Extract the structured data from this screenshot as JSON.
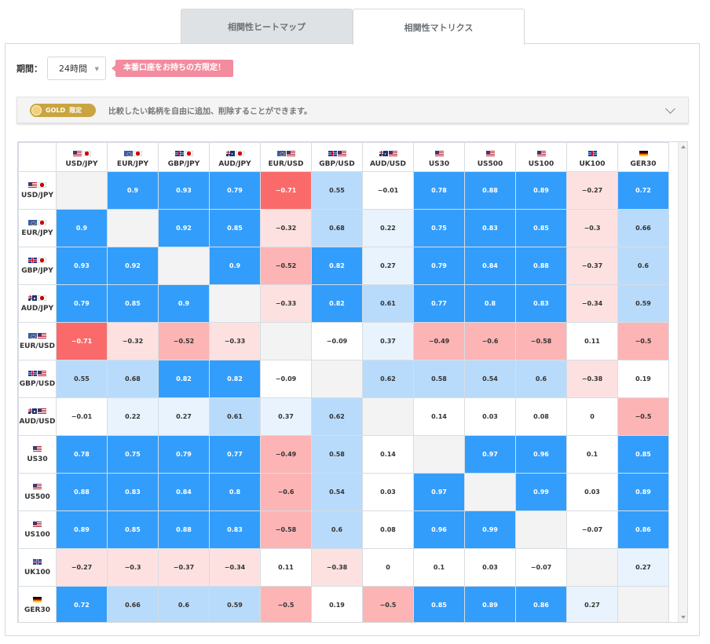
{
  "tabs": [
    {
      "label": "相関性ヒートマップ",
      "active": false
    },
    {
      "label": "相関性マトリクス",
      "active": true
    }
  ],
  "period": {
    "label": "期間：",
    "value": "24時間"
  },
  "promo": "本番口座をお持ちの方限定！",
  "gold_bar": {
    "badge": "GOLD",
    "badge_suffix": "限定",
    "text": "比較したい銘柄を自由に追加、削除することができます。"
  },
  "colors": {
    "strong_pos": "#339dfb",
    "mid_pos": "#b8dbfb",
    "light_pos": "#e8f3fd",
    "strong_neg": "#fb6a6a",
    "mid_neg": "#fdb4b4",
    "light_neg": "#fde1e1",
    "diagonal": "#f3f3f3"
  },
  "matrix": {
    "symbols": [
      {
        "label": "USD/JPY",
        "flags": [
          "us",
          "jp"
        ]
      },
      {
        "label": "EUR/JPY",
        "flags": [
          "eu",
          "jp"
        ]
      },
      {
        "label": "GBP/JPY",
        "flags": [
          "gb",
          "jp"
        ]
      },
      {
        "label": "AUD/JPY",
        "flags": [
          "au",
          "jp"
        ]
      },
      {
        "label": "EUR/USD",
        "flags": [
          "eu",
          "us"
        ]
      },
      {
        "label": "GBP/USD",
        "flags": [
          "gb",
          "us"
        ]
      },
      {
        "label": "AUD/USD",
        "flags": [
          "au",
          "us"
        ]
      },
      {
        "label": "US30",
        "flags": [
          "us"
        ]
      },
      {
        "label": "US500",
        "flags": [
          "us"
        ]
      },
      {
        "label": "US100",
        "flags": [
          "us"
        ]
      },
      {
        "label": "UK100",
        "flags": [
          "gb"
        ]
      },
      {
        "label": "GER30",
        "flags": [
          "de"
        ]
      }
    ],
    "values": [
      [
        null,
        0.9,
        0.93,
        0.79,
        -0.71,
        0.55,
        -0.01,
        0.78,
        0.88,
        0.89,
        -0.27,
        0.72
      ],
      [
        0.9,
        null,
        0.92,
        0.85,
        -0.32,
        0.68,
        0.22,
        0.75,
        0.83,
        0.85,
        -0.3,
        0.66
      ],
      [
        0.93,
        0.92,
        null,
        0.9,
        -0.52,
        0.82,
        0.27,
        0.79,
        0.84,
        0.88,
        -0.37,
        0.6
      ],
      [
        0.79,
        0.85,
        0.9,
        null,
        -0.33,
        0.82,
        0.61,
        0.77,
        0.8,
        0.83,
        -0.34,
        0.59
      ],
      [
        -0.71,
        -0.32,
        -0.52,
        -0.33,
        null,
        -0.09,
        0.37,
        -0.49,
        -0.6,
        -0.58,
        0.11,
        -0.5
      ],
      [
        0.55,
        0.68,
        0.82,
        0.82,
        -0.09,
        null,
        0.62,
        0.58,
        0.54,
        0.6,
        -0.38,
        0.19
      ],
      [
        -0.01,
        0.22,
        0.27,
        0.61,
        0.37,
        0.62,
        null,
        0.14,
        0.03,
        0.08,
        0,
        -0.5
      ],
      [
        0.78,
        0.75,
        0.79,
        0.77,
        -0.49,
        0.58,
        0.14,
        null,
        0.97,
        0.96,
        0.1,
        0.85
      ],
      [
        0.88,
        0.83,
        0.84,
        0.8,
        -0.6,
        0.54,
        0.03,
        0.97,
        null,
        0.99,
        0.03,
        0.89
      ],
      [
        0.89,
        0.85,
        0.88,
        0.83,
        -0.58,
        0.6,
        0.08,
        0.96,
        0.99,
        null,
        -0.07,
        0.86
      ],
      [
        -0.27,
        -0.3,
        -0.37,
        -0.34,
        0.11,
        -0.38,
        0,
        0.1,
        0.03,
        -0.07,
        null,
        0.27
      ],
      [
        0.72,
        0.66,
        0.6,
        0.59,
        -0.5,
        0.19,
        -0.5,
        0.85,
        0.89,
        0.86,
        0.27,
        null
      ]
    ]
  }
}
